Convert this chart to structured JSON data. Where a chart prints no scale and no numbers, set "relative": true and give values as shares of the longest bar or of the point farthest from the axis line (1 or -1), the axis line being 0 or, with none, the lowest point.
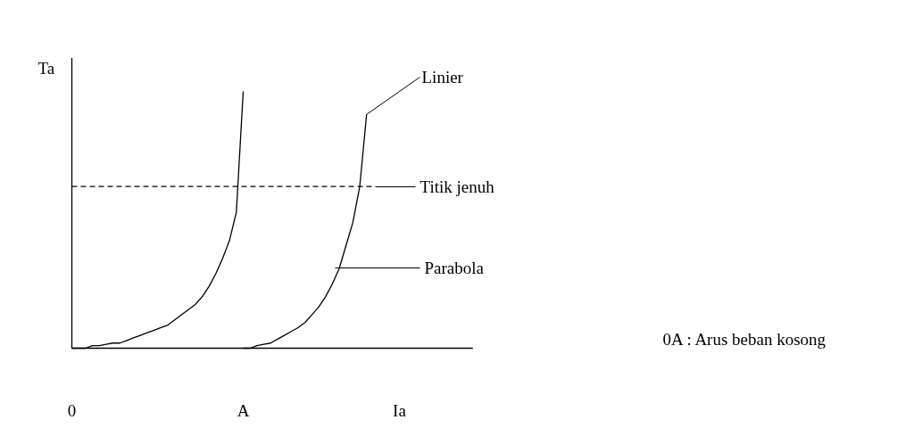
{
  "chart_data": {
    "type": "line",
    "relative": true,
    "xlabel": "Ia",
    "ylabel": "Ta",
    "categories": [
      "0",
      null,
      null,
      null,
      null,
      null,
      null,
      null,
      null,
      null,
      null,
      null,
      null,
      null,
      null,
      null,
      null,
      null,
      null,
      null,
      null,
      null,
      null,
      null,
      null,
      "A",
      null,
      null,
      null,
      null,
      null,
      null,
      null,
      null,
      null,
      null,
      null,
      null,
      null,
      null,
      null,
      null,
      null,
      null,
      null,
      null,
      null,
      null,
      null,
      null,
      null,
      null,
      null,
      null,
      null,
      null,
      null,
      null,
      null
    ],
    "series": [
      {
        "color": "#000000",
        "values": [
          0,
          0,
          0,
          0.01,
          0.01,
          0.015,
          0.02,
          0.02,
          0.03,
          0.04,
          0.05,
          0.06,
          0.07,
          0.08,
          0.09,
          0.11,
          0.13,
          0.15,
          0.17,
          0.2,
          0.24,
          0.29,
          0.35,
          0.42,
          0.53,
          1.0,
          null,
          null,
          null,
          null,
          null,
          null,
          null,
          null,
          null,
          null,
          null,
          null,
          null,
          null,
          null,
          null,
          null,
          null,
          null,
          null,
          null,
          null,
          null,
          null,
          null,
          null,
          null,
          null,
          null,
          null,
          null,
          null,
          null
        ]
      },
      {
        "color": "#000000",
        "values": [
          null,
          null,
          null,
          null,
          null,
          null,
          null,
          null,
          null,
          null,
          null,
          null,
          null,
          null,
          null,
          null,
          null,
          null,
          null,
          null,
          null,
          null,
          null,
          null,
          null,
          0,
          0,
          0.01,
          0.015,
          0.02,
          0.035,
          0.05,
          0.065,
          0.08,
          0.1,
          0.13,
          0.16,
          0.2,
          0.25,
          0.31,
          0.4,
          0.49,
          0.63,
          0.91,
          null,
          null,
          null,
          null,
          null,
          null,
          null,
          null,
          null,
          null,
          null,
          null,
          null,
          null,
          null
        ]
      },
      {
        "color": "#000000",
        "line_style": "dashed",
        "values": [
          0.63,
          0.63,
          0.63,
          0.63,
          0.63,
          0.63,
          0.63,
          0.63,
          0.63,
          0.63,
          0.63,
          0.63,
          0.63,
          0.63,
          0.63,
          0.63,
          0.63,
          0.63,
          0.63,
          0.63,
          0.63,
          0.63,
          0.63,
          0.63,
          0.63,
          0.63,
          0.63,
          0.63,
          0.63,
          0.63,
          0.63,
          0.63,
          0.63,
          0.63,
          0.63,
          0.63,
          0.63,
          0.63,
          0.63,
          0.63,
          0.63,
          0.63,
          0.63,
          0.63,
          0.63,
          null,
          null,
          null,
          null,
          null,
          null,
          null,
          null,
          null,
          null,
          null,
          null,
          null,
          null
        ]
      }
    ],
    "annotations": [
      "Linier",
      "Titik jenuh",
      "Parabola",
      "0A : Arus beban kosong"
    ]
  }
}
